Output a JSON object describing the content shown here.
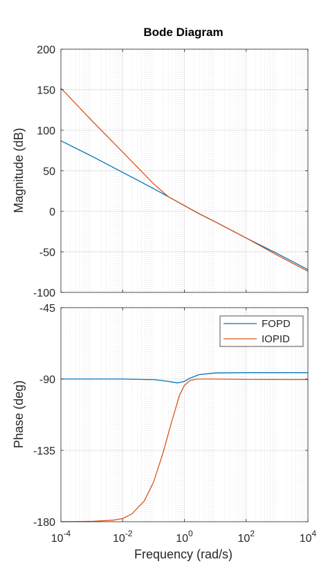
{
  "chart_data": {
    "type": "line",
    "title": "Bode Diagram",
    "xlabel": "Frequency  (rad/s)",
    "x_scale": "log",
    "xlim": [
      0.0001,
      10000
    ],
    "x_ticks": [
      0.0001,
      0.01,
      1,
      100,
      10000
    ],
    "x_tick_labels": [
      {
        "base": "10",
        "exp": "-4"
      },
      {
        "base": "10",
        "exp": "-2"
      },
      {
        "base": "10",
        "exp": "0"
      },
      {
        "base": "10",
        "exp": "2"
      },
      {
        "base": "10",
        "exp": "4"
      }
    ],
    "grid": true,
    "colors": {
      "FOPD": "#0072BD",
      "IOPID": "#D95319"
    },
    "legend": {
      "placement": "top-right",
      "panel": "phase",
      "entries": [
        "FOPD",
        "IOPID"
      ]
    },
    "magnitude": {
      "ylabel": "Magnitude (dB)",
      "ylim": [
        -100,
        200
      ],
      "y_ticks": [
        -100,
        -50,
        0,
        50,
        100,
        150,
        200
      ],
      "y_tick_labels": [
        "-100",
        "-50",
        "0",
        "50",
        "100",
        "150",
        "200"
      ],
      "series": [
        {
          "name": "FOPD",
          "x": [
            0.0001,
            0.001,
            0.01,
            0.1,
            0.3,
            1,
            3,
            10,
            100,
            1000,
            10000
          ],
          "y": [
            87,
            68,
            48,
            28,
            18,
            7,
            -3,
            -13,
            -33,
            -52,
            -72
          ]
        },
        {
          "name": "IOPID",
          "x": [
            0.0001,
            0.001,
            0.01,
            0.1,
            0.3,
            1,
            3,
            10,
            100,
            1000,
            10000
          ],
          "y": [
            152,
            112,
            73,
            34,
            18,
            7,
            -3,
            -13,
            -33,
            -54,
            -74
          ]
        }
      ]
    },
    "phase": {
      "ylabel": "Phase (deg)",
      "ylim": [
        -180,
        -45
      ],
      "y_ticks": [
        -180,
        -135,
        -90,
        -45
      ],
      "y_tick_labels": [
        "-180",
        "-135",
        "-90",
        "-45"
      ],
      "series": [
        {
          "name": "FOPD",
          "x": [
            0.0001,
            0.01,
            0.1,
            0.3,
            0.6,
            1,
            1.5,
            3,
            10,
            100,
            10000
          ],
          "y": [
            -90,
            -90,
            -90.4,
            -91.5,
            -92.5,
            -91.5,
            -89.5,
            -87.2,
            -86.2,
            -86,
            -86
          ]
        },
        {
          "name": "IOPID",
          "x": [
            0.0001,
            0.001,
            0.005,
            0.01,
            0.02,
            0.05,
            0.1,
            0.2,
            0.4,
            0.7,
            1,
            1.5,
            2.5,
            5,
            10,
            100,
            10000
          ],
          "y": [
            -180,
            -179.8,
            -179,
            -178,
            -175,
            -167,
            -155,
            -137,
            -116,
            -100,
            -94,
            -91,
            -90,
            -90,
            -90,
            -90.2,
            -90.3
          ]
        }
      ]
    }
  }
}
